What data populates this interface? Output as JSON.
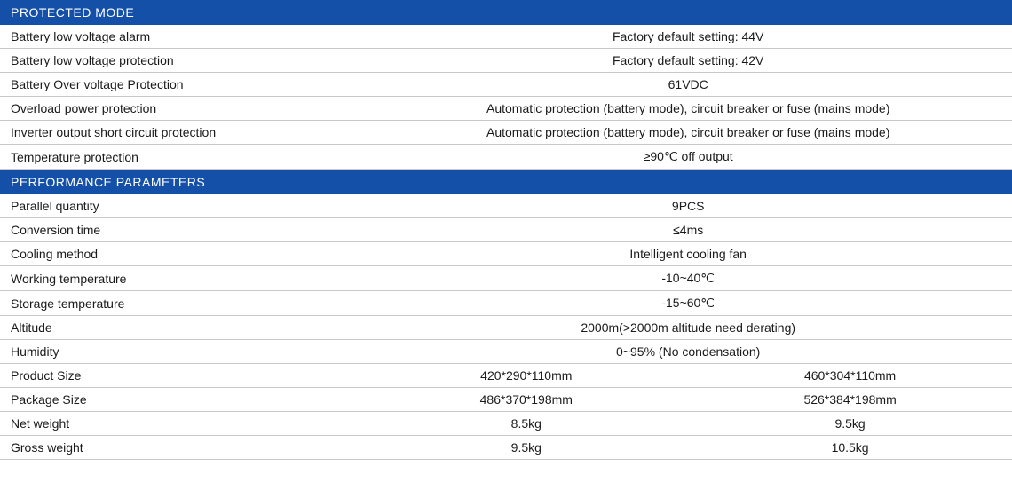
{
  "styling": {
    "header_bg": "#1450a8",
    "header_text_color": "#ffffff",
    "row_text_color": "#1a1a1a",
    "border_color": "#c8c8c8",
    "header_fontsize": 14,
    "row_fontsize": 14,
    "label_col_width_pct": 36,
    "value_half_col_width_pct": 32
  },
  "sections": {
    "protected_mode": {
      "title": "PROTECTED MODE",
      "rows": [
        {
          "label": "Battery low voltage alarm",
          "value": "Factory default setting: 44V"
        },
        {
          "label": "Battery low voltage protection",
          "value": "Factory default setting: 42V"
        },
        {
          "label": "Battery Over voltage Protection",
          "value": "61VDC"
        },
        {
          "label": "Overload power protection",
          "value": "Automatic protection (battery mode), circuit breaker or fuse (mains mode)"
        },
        {
          "label": "Inverter output short circuit protection",
          "value": "Automatic protection (battery mode), circuit breaker or fuse (mains mode)"
        },
        {
          "label": "Temperature protection",
          "value": "≥90℃ off output"
        }
      ]
    },
    "performance_parameters": {
      "title": "PERFORMANCE PARAMETERS",
      "rows_single": [
        {
          "label": "Parallel quantity",
          "value": "9PCS"
        },
        {
          "label": "Conversion time",
          "value": "≤4ms"
        },
        {
          "label": "Cooling method",
          "value": "Intelligent cooling fan"
        },
        {
          "label": "Working temperature",
          "value": "-10~40℃"
        },
        {
          "label": "Storage temperature",
          "value": "-15~60℃"
        },
        {
          "label": "Altitude",
          "value": "2000m(>2000m altitude need derating)"
        },
        {
          "label": "Humidity",
          "value": "0~95% (No condensation)"
        }
      ],
      "rows_double": [
        {
          "label": "Product Size",
          "value_a": "420*290*110mm",
          "value_b": "460*304*110mm"
        },
        {
          "label": "Package Size",
          "value_a": "486*370*198mm",
          "value_b": "526*384*198mm"
        },
        {
          "label": "Net weight",
          "value_a": "8.5kg",
          "value_b": "9.5kg"
        },
        {
          "label": "Gross weight",
          "value_a": "9.5kg",
          "value_b": "10.5kg"
        }
      ]
    }
  }
}
